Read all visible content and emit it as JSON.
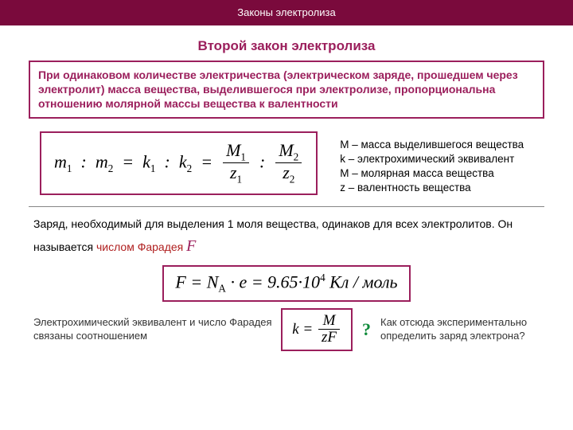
{
  "colors": {
    "header_bg": "#7a0a3c",
    "accent": "#9b1f5c",
    "red": "#b02020",
    "green": "#0f8a3a",
    "hr": "#868686",
    "text": "#000000",
    "note_text": "#333333",
    "bg": "#ffffff"
  },
  "typography": {
    "body_font": "Arial",
    "formula_font": "Times New Roman",
    "title_fontsize": 17,
    "body_fontsize": 14,
    "legend_fontsize": 13.5,
    "note_fontsize": 13,
    "formula_fontsize": 22
  },
  "header": {
    "title": "Законы электролиза"
  },
  "title": "Второй  закон электролиза",
  "law_text": "При одинаковом количестве электричества (электрическом заряде, прошедшем через электролит) масса вещества, выделившегося при электролизе, пропорциональна отношению молярной массы вещества к валентности",
  "formula1": {
    "lhs1": "m",
    "lhs1_sub": "1",
    "lhs2": "m",
    "lhs2_sub": "2",
    "mid1": "k",
    "mid1_sub": "1",
    "mid2": "k",
    "mid2_sub": "2",
    "r1_num": "M",
    "r1_num_sub": "1",
    "r1_den": "z",
    "r1_den_sub": "1",
    "r2_num": "M",
    "r2_num_sub": "2",
    "r2_den": "z",
    "r2_den_sub": "2"
  },
  "legend": {
    "l1": "M – масса выделившегося вещества",
    "l2": "k – электрохимический эквивалент",
    "l3": "M – молярная масса вещества",
    "l4": "z – валентность вещества"
  },
  "para2": {
    "pre": "Заряд, необходимый для выделения 1 моля вещества, одинаков для всех электролитов. Он называется ",
    "red": "числом Фарадея ",
    "F": "F"
  },
  "formula2": {
    "F": "F",
    "eq": " = ",
    "NA": "N",
    "NA_sub": "A",
    "dot": " · ",
    "e": "e",
    "val": " = 9.65·10",
    "exp": "4",
    "unit": " Кл / моль"
  },
  "note_left": "Электрохимический эквивалент и число Фарадея связаны соотношением",
  "formula3": {
    "k": "k",
    "eq": " = ",
    "num": "M",
    "den1": "z",
    "den2": "F"
  },
  "qmark": "?",
  "note_right": "Как отсюда экспериментально определить заряд электрона?"
}
